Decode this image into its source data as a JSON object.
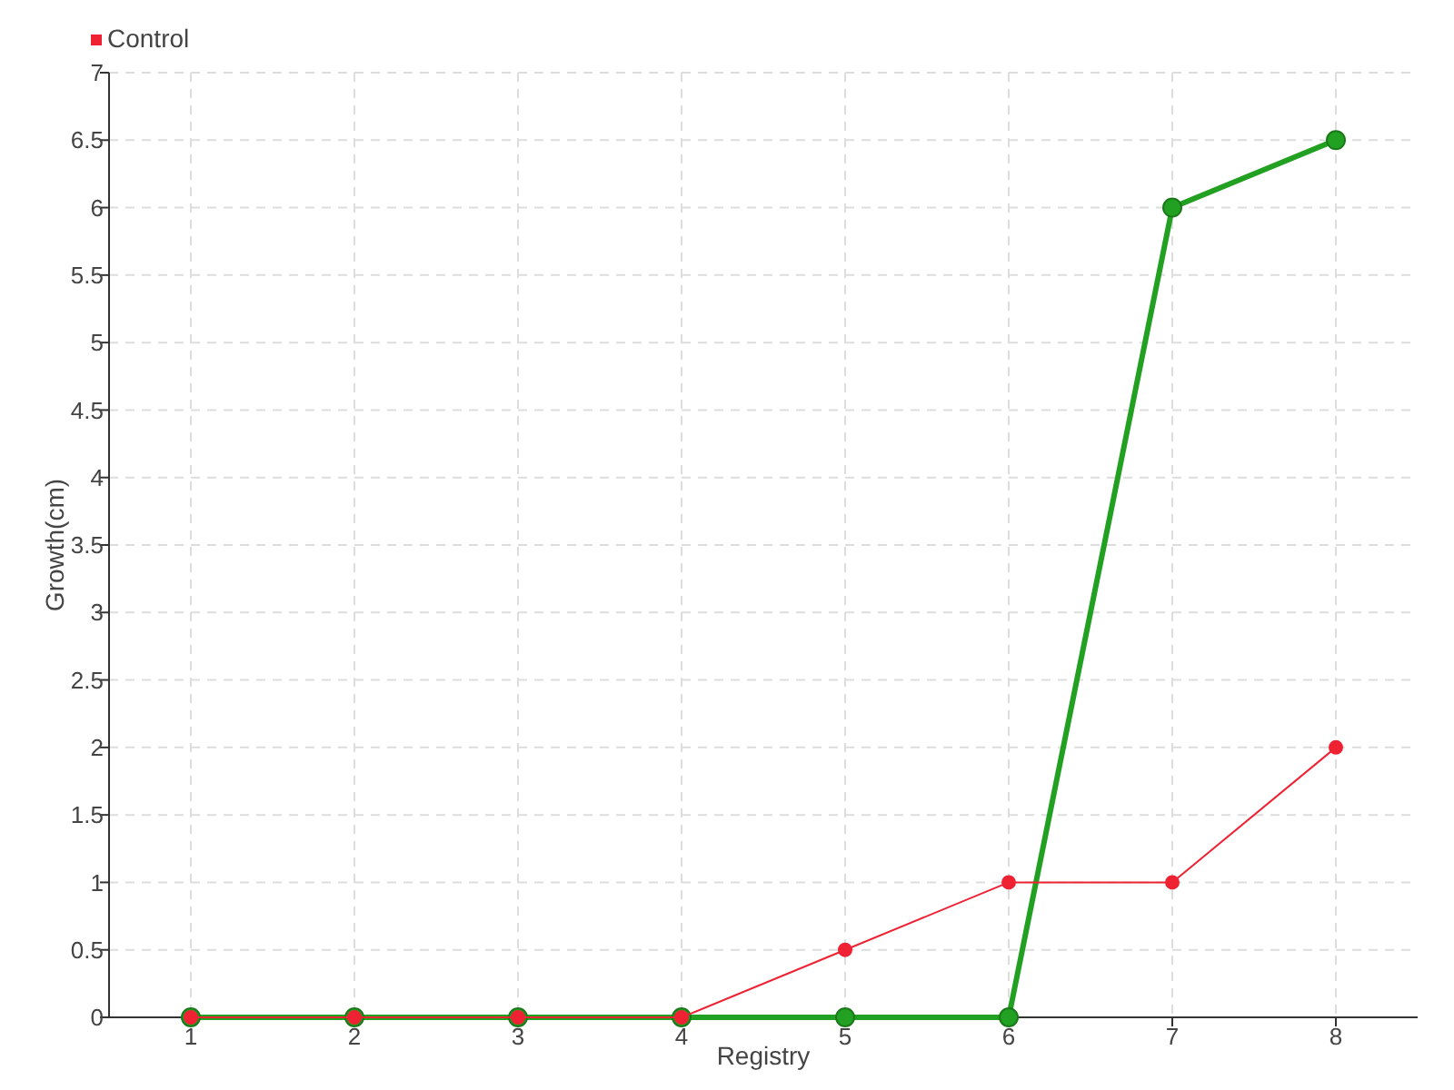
{
  "chart_data": {
    "type": "line",
    "xlabel": "Registry",
    "ylabel": "Growth(cm)",
    "x": [
      1,
      2,
      3,
      4,
      5,
      6,
      7,
      8
    ],
    "series": [
      {
        "color": "#22a022",
        "values": [
          0,
          0,
          0,
          0,
          0,
          0,
          6,
          6.5
        ]
      },
      {
        "name": "Control",
        "color": "#ee2233",
        "values": [
          0,
          0,
          0,
          0,
          0.5,
          1,
          1,
          2
        ]
      }
    ],
    "xlim": [
      0.5,
      8.5
    ],
    "xticks": [
      1,
      2,
      3,
      4,
      5,
      6,
      7,
      8
    ],
    "ylim": [
      0,
      7
    ],
    "yticks": [
      0,
      0.5,
      1,
      1.5,
      2,
      2.5,
      3,
      3.5,
      4,
      4.5,
      5,
      5.5,
      6,
      6.5,
      7
    ],
    "grid": true,
    "legend": "top left",
    "marker": "circle",
    "line_style": "solid"
  }
}
